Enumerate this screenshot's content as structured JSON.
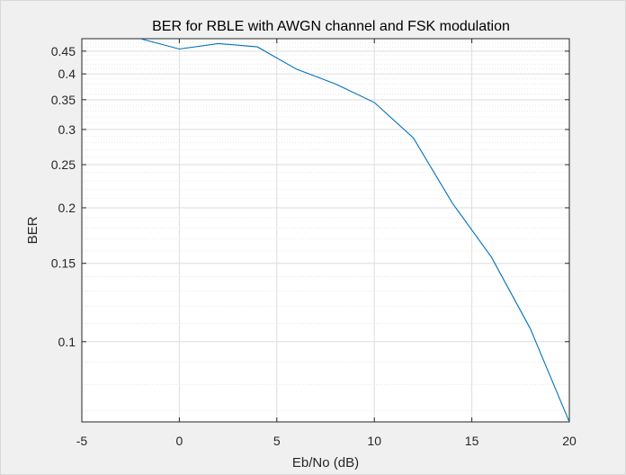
{
  "chart_data": {
    "type": "line",
    "title": "BER for RBLE with AWGN channel and FSK modulation",
    "xlabel": "Eb/No (dB)",
    "ylabel": "BER",
    "xlim": [
      -5,
      20
    ],
    "ylim": [
      0.066,
      0.48
    ],
    "yscale": "log",
    "grid": true,
    "minor_grid": true,
    "x_ticks": [
      -5,
      0,
      5,
      10,
      15,
      20
    ],
    "x_tick_labels": [
      "-5",
      "0",
      "5",
      "10",
      "15",
      "20"
    ],
    "y_ticks": [
      0.1,
      0.15,
      0.2,
      0.25,
      0.3,
      0.35,
      0.4,
      0.45
    ],
    "y_tick_labels": [
      "0.1",
      "0.15",
      "0.2",
      "0.25",
      "0.3",
      "0.35",
      "0.4",
      "0.45"
    ],
    "series": [
      {
        "color": "#0072bd",
        "x": [
          -2,
          0,
          2,
          4,
          6,
          8,
          10,
          12,
          14,
          16,
          18,
          20
        ],
        "y": [
          0.48,
          0.455,
          0.468,
          0.46,
          0.41,
          0.38,
          0.345,
          0.287,
          0.205,
          0.155,
          0.107,
          0.066
        ]
      }
    ]
  }
}
